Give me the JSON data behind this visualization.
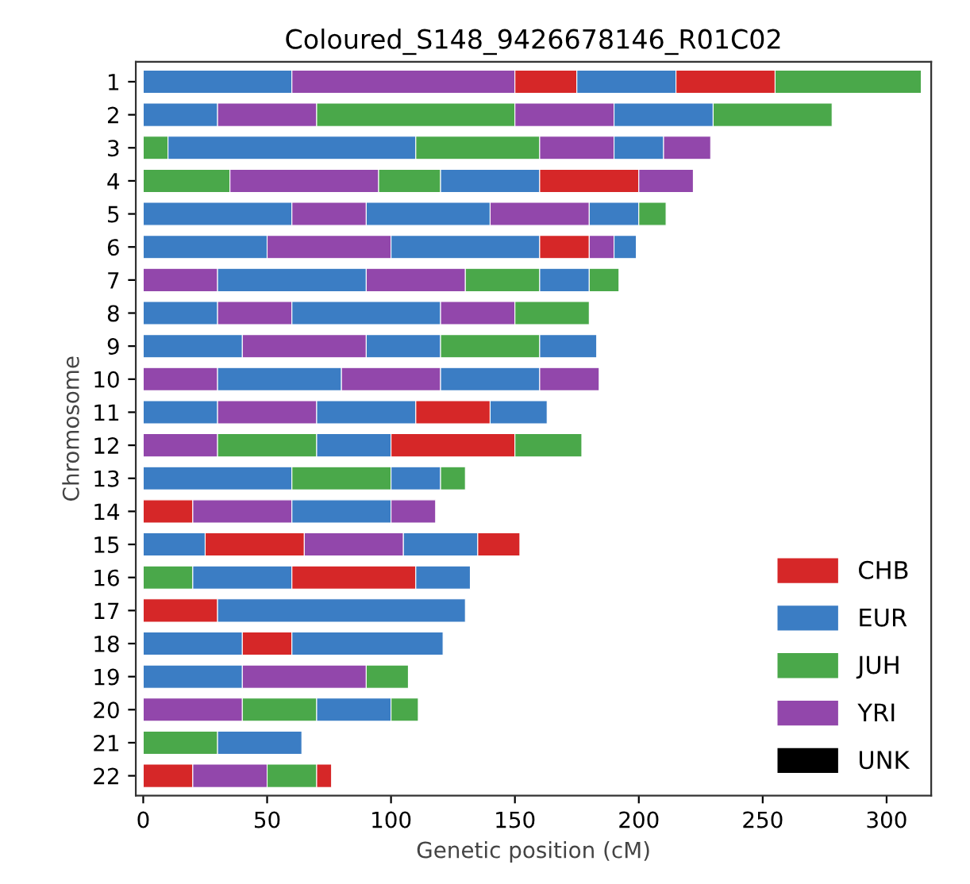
{
  "chart_data": {
    "type": "bar",
    "orientation": "horizontal",
    "stacked": true,
    "title": "Coloured_S148_9426678146_R01C02",
    "xlabel": "Genetic position (cM)",
    "ylabel": "Chromosome",
    "categories": [
      "1",
      "2",
      "3",
      "4",
      "5",
      "6",
      "7",
      "8",
      "9",
      "10",
      "11",
      "12",
      "13",
      "14",
      "15",
      "16",
      "17",
      "18",
      "19",
      "20",
      "21",
      "22"
    ],
    "xlim": [
      -3,
      318
    ],
    "xticks": [
      0,
      50,
      100,
      150,
      200,
      250,
      300
    ],
    "grid": false,
    "legend": "bottom right",
    "series": [
      {
        "values": [
          60,
          30,
          10,
          35,
          60,
          50,
          30,
          30,
          40,
          30,
          30,
          30,
          60,
          20,
          25,
          20,
          30,
          40,
          40,
          40,
          30,
          20
        ],
        "colors": [
          "#3b7dc4",
          "#3b7dc4",
          "#4aa84a",
          "#4aa84a",
          "#3b7dc4",
          "#3b7dc4",
          "#9247ab",
          "#3b7dc4",
          "#3b7dc4",
          "#9247ab",
          "#3b7dc4",
          "#9247ab",
          "#3b7dc4",
          "#d62728",
          "#3b7dc4",
          "#4aa84a",
          "#d62728",
          "#3b7dc4",
          "#3b7dc4",
          "#9247ab",
          "#4aa84a",
          "#d62728"
        ]
      },
      {
        "values": [
          90,
          40,
          100,
          60,
          30,
          50,
          60,
          30,
          50,
          50,
          40,
          40,
          40,
          40,
          40,
          40,
          100,
          20,
          50,
          30,
          34,
          30
        ],
        "colors": [
          "#9247ab",
          "#9247ab",
          "#3b7dc4",
          "#9247ab",
          "#9247ab",
          "#9247ab",
          "#3b7dc4",
          "#9247ab",
          "#9247ab",
          "#3b7dc4",
          "#9247ab",
          "#4aa84a",
          "#4aa84a",
          "#9247ab",
          "#d62728",
          "#3b7dc4",
          "#3b7dc4",
          "#d62728",
          "#9247ab",
          "#4aa84a",
          "#3b7dc4",
          "#9247ab"
        ]
      },
      {
        "values": [
          25,
          80,
          50,
          25,
          50,
          60,
          40,
          60,
          30,
          40,
          40,
          30,
          20,
          40,
          40,
          50,
          null,
          61,
          17,
          30,
          null,
          20
        ],
        "colors": [
          "#d62728",
          "#4aa84a",
          "#4aa84a",
          "#4aa84a",
          "#3b7dc4",
          "#3b7dc4",
          "#9247ab",
          "#3b7dc4",
          "#3b7dc4",
          "#9247ab",
          "#3b7dc4",
          "#3b7dc4",
          "#3b7dc4",
          "#3b7dc4",
          "#9247ab",
          "#d62728",
          null,
          "#3b7dc4",
          "#4aa84a",
          "#3b7dc4",
          null,
          "#4aa84a"
        ]
      },
      {
        "values": [
          40,
          40,
          30,
          40,
          40,
          20,
          30,
          30,
          40,
          40,
          30,
          50,
          10,
          18,
          30,
          22,
          null,
          null,
          null,
          11,
          null,
          6
        ],
        "colors": [
          "#3b7dc4",
          "#9247ab",
          "#9247ab",
          "#3b7dc4",
          "#9247ab",
          "#d62728",
          "#4aa84a",
          "#9247ab",
          "#4aa84a",
          "#3b7dc4",
          "#d62728",
          "#d62728",
          "#4aa84a",
          "#9247ab",
          "#3b7dc4",
          "#3b7dc4",
          null,
          null,
          null,
          "#4aa84a",
          null,
          "#d62728"
        ]
      },
      {
        "values": [
          40,
          40,
          20,
          40,
          20,
          10,
          20,
          30,
          23,
          24,
          23,
          27,
          null,
          null,
          17,
          null,
          null,
          null,
          null,
          null,
          null,
          null
        ],
        "colors": [
          "#d62728",
          "#3b7dc4",
          "#3b7dc4",
          "#d62728",
          "#3b7dc4",
          "#9247ab",
          "#3b7dc4",
          "#4aa84a",
          "#3b7dc4",
          "#9247ab",
          "#3b7dc4",
          "#4aa84a",
          null,
          null,
          "#d62728",
          null,
          null,
          null,
          null,
          null,
          null,
          null
        ]
      },
      {
        "values": [
          59,
          48,
          19,
          22,
          11,
          9,
          12,
          null,
          null,
          null,
          null,
          null,
          null,
          null,
          null,
          null,
          null,
          null,
          null,
          null,
          null,
          null
        ],
        "colors": [
          "#4aa84a",
          "#4aa84a",
          "#9247ab",
          "#9247ab",
          "#4aa84a",
          "#3b7dc4",
          "#4aa84a",
          null,
          null,
          null,
          null,
          null,
          null,
          null,
          null,
          null,
          null,
          null,
          null,
          null,
          null,
          null
        ]
      },
      {
        "name": "CHB",
        "color": "#d62728",
        "values": [
          null,
          null,
          null,
          null,
          null,
          null,
          null,
          null,
          null,
          null,
          null,
          null,
          null,
          null,
          null,
          null,
          null,
          null,
          null,
          null,
          null,
          null
        ]
      },
      {
        "name": "EUR",
        "color": "#3b7dc4",
        "values": [
          null,
          null,
          null,
          null,
          null,
          null,
          null,
          null,
          null,
          null,
          null,
          null,
          null,
          null,
          null,
          null,
          null,
          null,
          null,
          null,
          null,
          null
        ]
      },
      {
        "name": "JUH",
        "color": "#4aa84a",
        "values": [
          null,
          null,
          null,
          null,
          null,
          null,
          null,
          null,
          null,
          null,
          null,
          null,
          null,
          null,
          null,
          null,
          null,
          null,
          null,
          null,
          null,
          null
        ]
      },
      {
        "name": "YRI",
        "color": "#9247ab",
        "values": [
          null,
          null,
          null,
          null,
          null,
          null,
          null,
          null,
          null,
          null,
          null,
          null,
          null,
          null,
          null,
          null,
          null,
          null,
          null,
          null,
          null,
          null
        ]
      },
      {
        "name": "UNK",
        "color": "#000000",
        "values": [
          null,
          null,
          null,
          null,
          null,
          null,
          null,
          null,
          null,
          null,
          null,
          null,
          null,
          null,
          null,
          null,
          null,
          null,
          null,
          null,
          null,
          null
        ]
      }
    ]
  }
}
